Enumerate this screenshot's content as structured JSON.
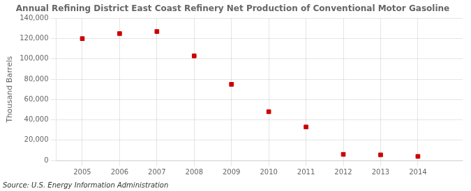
{
  "chart_data": {
    "type": "scatter",
    "title": "Annual Refining District East Coast Refinery Net Production of Conventional Motor Gasoline",
    "y_label": "Thousand Barrels",
    "annotations": [
      "Source: U.S. Energy Information Administration"
    ],
    "x": [
      2005,
      2006,
      2007,
      2008,
      2009,
      2010,
      2011,
      2012,
      2013,
      2014
    ],
    "values": [
      120000,
      125000,
      127000,
      103000,
      75000,
      48000,
      33000,
      6000,
      5500,
      4000
    ],
    "color": "#cc0000",
    "marker": "square",
    "grid": true,
    "xlim": [
      2004.3,
      2015.2
    ],
    "xticks": [
      2005,
      2006,
      2007,
      2008,
      2009,
      2010,
      2011,
      2012,
      2013,
      2014
    ],
    "ylim": [
      0,
      140000
    ],
    "yticks": [
      0,
      {
        "value": 20000,
        "label": "20,000"
      },
      {
        "value": 40000,
        "label": "40,000"
      },
      {
        "value": 60000,
        "label": "60,000"
      },
      {
        "value": 80000,
        "label": "80,000"
      },
      {
        "value": 100000,
        "label": "100,000"
      },
      {
        "value": 120000,
        "label": "120,000"
      },
      {
        "value": 140000,
        "label": "140,000"
      }
    ]
  }
}
